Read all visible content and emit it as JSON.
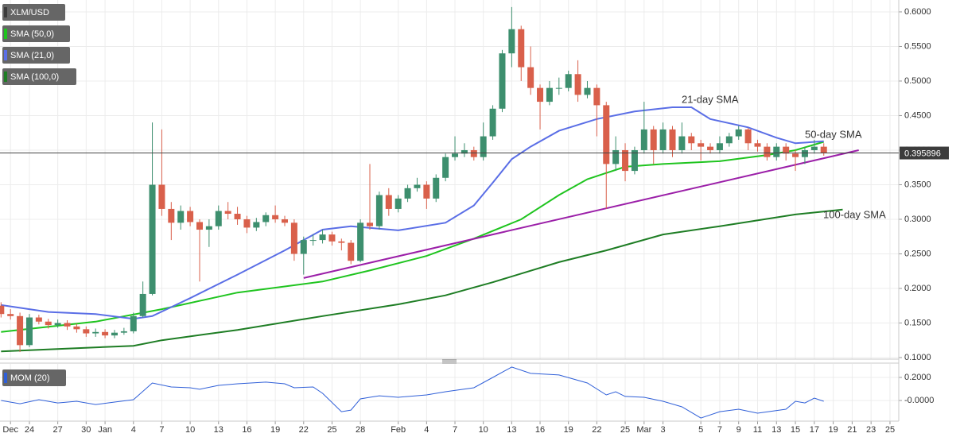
{
  "chart_data": {
    "type": "candlestick",
    "title": "XLM/USD",
    "categories": [
      null,
      "Dec",
      null,
      "24",
      null,
      null,
      "27",
      null,
      null,
      "30",
      null,
      "Jan",
      null,
      null,
      "4",
      null,
      null,
      "7",
      null,
      null,
      "10",
      null,
      null,
      "13",
      null,
      null,
      "16",
      null,
      null,
      "19",
      null,
      null,
      "22",
      null,
      null,
      "25",
      null,
      null,
      "28",
      null,
      null,
      null,
      "Feb",
      null,
      null,
      "4",
      null,
      null,
      "7",
      null,
      null,
      "10",
      null,
      null,
      "13",
      null,
      null,
      "16",
      null,
      null,
      "19",
      null,
      null,
      "22",
      null,
      null,
      "25",
      null,
      "Mar",
      null,
      "3",
      null,
      null,
      null,
      "5",
      null,
      "7",
      null,
      "9",
      null,
      "11",
      null,
      "13",
      null,
      "15",
      null,
      "17",
      null,
      "19",
      null,
      "21",
      null,
      "23",
      null,
      "25"
    ],
    "open": [
      0.175,
      0.163,
      0.16,
      0.118,
      0.158,
      0.152,
      0.147,
      0.15,
      0.145,
      0.141,
      0.135,
      0.137,
      0.132,
      0.136,
      0.138,
      0.16,
      0.192,
      0.35,
      0.315,
      0.295,
      0.312,
      0.296,
      0.285,
      0.29,
      0.312,
      0.308,
      0.3,
      0.288,
      0.296,
      0.306,
      0.3,
      0.295,
      0.25,
      0.27,
      0.27,
      0.278,
      0.268,
      0.266,
      0.24,
      0.295,
      0.29,
      0.335,
      0.315,
      0.33,
      0.345,
      0.35,
      0.33,
      0.36,
      0.39,
      0.395,
      0.4,
      0.39,
      0.42,
      0.46,
      0.54,
      0.575,
      0.52,
      0.49,
      0.47,
      0.49,
      0.49,
      0.51,
      0.48,
      0.49,
      0.465,
      0.38,
      0.4,
      0.37,
      0.4,
      0.43,
      0.4,
      0.43,
      0.4,
      0.42,
      0.41,
      0.405,
      0.4,
      0.41,
      0.42,
      0.43,
      0.41,
      0.405,
      0.39,
      0.405,
      0.395,
      0.39,
      0.4,
      0.405,
      null,
      null,
      null,
      null,
      null,
      null,
      null
    ],
    "high": [
      0.18,
      0.17,
      0.165,
      0.163,
      0.162,
      0.156,
      0.155,
      0.154,
      0.149,
      0.145,
      0.142,
      0.141,
      0.14,
      0.143,
      0.165,
      0.21,
      0.44,
      0.43,
      0.325,
      0.32,
      0.318,
      0.3,
      0.3,
      0.32,
      0.325,
      0.318,
      0.305,
      0.302,
      0.31,
      0.32,
      0.305,
      0.3,
      0.275,
      0.278,
      0.285,
      0.282,
      0.272,
      0.27,
      0.3,
      0.38,
      0.34,
      0.345,
      0.335,
      0.35,
      0.36,
      0.355,
      0.365,
      0.395,
      0.42,
      0.41,
      0.405,
      0.44,
      0.465,
      0.545,
      0.607,
      0.58,
      0.55,
      0.495,
      0.5,
      0.505,
      0.515,
      0.53,
      0.5,
      0.495,
      0.47,
      0.42,
      0.41,
      0.405,
      0.47,
      0.435,
      0.44,
      0.435,
      0.44,
      0.425,
      0.415,
      0.41,
      0.42,
      0.425,
      0.435,
      0.432,
      0.415,
      0.41,
      0.41,
      0.41,
      0.4,
      0.405,
      0.415,
      0.41,
      null,
      null,
      null,
      null,
      null,
      null,
      null
    ],
    "low": [
      0.158,
      0.155,
      0.108,
      0.115,
      0.148,
      0.142,
      0.143,
      0.14,
      0.136,
      0.13,
      0.13,
      0.128,
      0.128,
      0.133,
      0.135,
      0.158,
      0.19,
      0.305,
      0.27,
      0.285,
      0.29,
      0.21,
      0.26,
      0.285,
      0.3,
      0.292,
      0.28,
      0.283,
      0.29,
      0.295,
      0.29,
      0.24,
      0.22,
      0.262,
      0.265,
      0.262,
      0.255,
      0.235,
      0.238,
      0.285,
      0.285,
      0.305,
      0.31,
      0.325,
      0.34,
      0.315,
      0.325,
      0.355,
      0.385,
      0.39,
      0.385,
      0.385,
      0.415,
      0.455,
      0.52,
      0.5,
      0.48,
      0.43,
      0.465,
      0.48,
      0.485,
      0.47,
      0.475,
      0.42,
      0.315,
      0.37,
      0.355,
      0.365,
      0.395,
      0.38,
      0.395,
      0.39,
      0.395,
      0.4,
      0.385,
      0.395,
      0.395,
      0.405,
      0.415,
      0.4,
      0.398,
      0.385,
      0.385,
      0.385,
      0.37,
      0.38,
      0.395,
      0.392,
      null,
      null,
      null,
      null,
      null,
      null,
      null
    ],
    "close": [
      0.163,
      0.16,
      0.118,
      0.158,
      0.152,
      0.147,
      0.15,
      0.145,
      0.141,
      0.135,
      0.137,
      0.132,
      0.136,
      0.138,
      0.16,
      0.192,
      0.35,
      0.315,
      0.295,
      0.312,
      0.296,
      0.285,
      0.29,
      0.312,
      0.308,
      0.3,
      0.288,
      0.296,
      0.306,
      0.3,
      0.295,
      0.25,
      0.27,
      0.27,
      0.278,
      0.268,
      0.266,
      0.24,
      0.295,
      0.29,
      0.335,
      0.315,
      0.33,
      0.345,
      0.35,
      0.33,
      0.36,
      0.39,
      0.395,
      0.4,
      0.39,
      0.42,
      0.46,
      0.54,
      0.575,
      0.52,
      0.49,
      0.47,
      0.49,
      0.49,
      0.51,
      0.48,
      0.49,
      0.465,
      0.38,
      0.4,
      0.37,
      0.4,
      0.43,
      0.4,
      0.43,
      0.4,
      0.42,
      0.41,
      0.405,
      0.4,
      0.41,
      0.42,
      0.43,
      0.41,
      0.405,
      0.39,
      0.405,
      0.395,
      0.39,
      0.4,
      0.405,
      0.395896,
      null,
      null,
      null,
      null,
      null,
      null,
      null
    ],
    "up_color": "#3d8f6e",
    "down_color": "#d9604b",
    "ylim": [
      0.0977,
      0.6172
    ],
    "yticks": [
      {
        "value": 0.1,
        "label": "0.1000"
      },
      {
        "value": 0.15,
        "label": "0.1500"
      },
      {
        "value": 0.2,
        "label": "0.2000"
      },
      {
        "value": 0.25,
        "label": "0.2500"
      },
      {
        "value": 0.3,
        "label": "0.3000"
      },
      {
        "value": 0.35,
        "label": "0.3500"
      },
      {
        "value": 0.4,
        "label": "0.4000"
      },
      {
        "value": 0.45,
        "label": "0.4500"
      },
      {
        "value": 0.5,
        "label": "0.5000"
      },
      {
        "value": 0.55,
        "label": "0.5500"
      },
      {
        "value": 0.6,
        "label": "0.6000"
      }
    ],
    "grid": true,
    "series": [
      {
        "name": "SMA (50,0)",
        "annotation": "50-day SMA",
        "color": "#1fc41f",
        "x": [
          0,
          10,
          17,
          25,
          34,
          39,
          45,
          50,
          55,
          59,
          62,
          66,
          70,
          76,
          81,
          84,
          87
        ],
        "values": [
          0.137,
          0.152,
          0.17,
          0.194,
          0.21,
          0.226,
          0.247,
          0.272,
          0.3,
          0.335,
          0.358,
          0.376,
          0.38,
          0.384,
          0.393,
          0.4,
          0.412
        ]
      },
      {
        "name": "SMA (21,0)",
        "annotation": "21-day SMA",
        "color": "#5a6ee6",
        "x": [
          0,
          5,
          10,
          14,
          16,
          20,
          25,
          30,
          34,
          37,
          42,
          47,
          50,
          52,
          54,
          56,
          59,
          63,
          67,
          71,
          73,
          75,
          79,
          82,
          84,
          87
        ],
        "values": [
          0.176,
          0.166,
          0.163,
          0.156,
          0.16,
          0.186,
          0.22,
          0.255,
          0.285,
          0.29,
          0.284,
          0.295,
          0.32,
          0.353,
          0.387,
          0.405,
          0.428,
          0.445,
          0.456,
          0.462,
          0.462,
          0.445,
          0.433,
          0.418,
          0.41,
          0.413
        ]
      },
      {
        "name": "SMA (100,0)",
        "annotation": "100-day SMA",
        "color": "#1e7d24",
        "x": [
          0,
          14,
          17,
          25,
          34,
          42,
          47,
          52,
          59,
          64,
          70,
          76,
          84,
          89
        ],
        "values": [
          0.109,
          0.117,
          0.125,
          0.14,
          0.16,
          0.177,
          0.19,
          0.209,
          0.238,
          0.255,
          0.278,
          0.29,
          0.307,
          0.314
        ]
      }
    ],
    "trendline": {
      "color": "#9b1fa8",
      "x": [
        32,
        90.7
      ],
      "values": [
        0.215,
        0.4
      ]
    },
    "momentum": {
      "name": "MOM (20)",
      "color": "#2f5fd8",
      "x": [
        0,
        2,
        4,
        6,
        8,
        10,
        12,
        14,
        16,
        18,
        20,
        21,
        23,
        25,
        28,
        30,
        31,
        33,
        34,
        36,
        37,
        38,
        39,
        40,
        42,
        45,
        47,
        50,
        52,
        54,
        56,
        59,
        62,
        64,
        65,
        66,
        68,
        70,
        72,
        74,
        76,
        78,
        80,
        83,
        84,
        85,
        86,
        87
      ],
      "values": [
        0.0,
        -0.028,
        0.007,
        -0.021,
        -0.007,
        -0.035,
        -0.014,
        0.007,
        0.152,
        0.117,
        0.11,
        0.097,
        0.131,
        0.145,
        0.159,
        0.145,
        0.11,
        0.117,
        0.062,
        -0.097,
        -0.083,
        0.014,
        0.028,
        0.041,
        0.028,
        0.048,
        0.076,
        0.11,
        0.2,
        0.29,
        0.235,
        0.221,
        0.152,
        0.048,
        0.076,
        0.035,
        0.028,
        -0.007,
        -0.055,
        -0.152,
        -0.097,
        -0.076,
        -0.11,
        -0.076,
        -0.007,
        -0.021,
        0.021,
        -0.007
      ],
      "ylim": [
        -0.179,
        0.317
      ],
      "yticks": [
        {
          "value": 0.2,
          "label": "0.2000"
        },
        {
          "value": 0,
          "label": "-0.0000"
        }
      ]
    }
  }
}
